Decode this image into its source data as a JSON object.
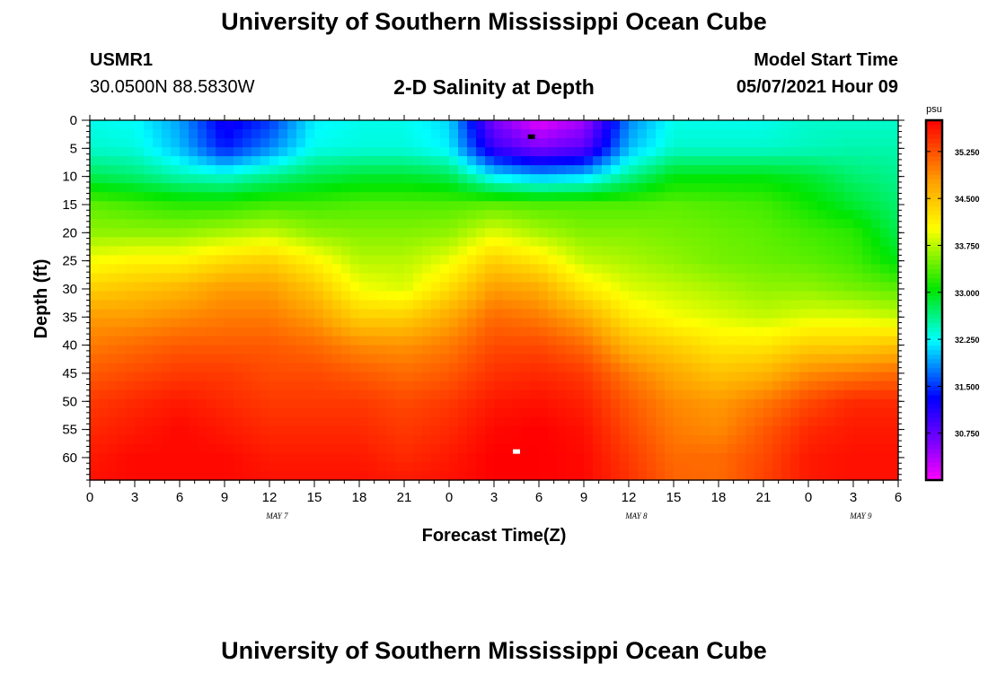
{
  "header": {
    "title": "University of Southern Mississippi Ocean Cube",
    "station": "USMR1",
    "coordinates": "30.0500N  88.5830W",
    "subtitle": "2-D Salinity at Depth",
    "model_start_label": "Model Start Time",
    "model_start_value": "05/07/2021 Hour 09"
  },
  "footer": {
    "title": "University of Southern Mississippi Ocean Cube"
  },
  "colors": {
    "frame": "#000000",
    "background": "#ffffff"
  },
  "chart_data": {
    "type": "heatmap",
    "title": "2-D Salinity at Depth",
    "xlabel": "Forecast Time(Z)",
    "ylabel": "Depth (ft)",
    "xlim": [
      0,
      54
    ],
    "ylim": [
      0,
      64
    ],
    "x_ticks": [
      {
        "x": 0,
        "label": "0"
      },
      {
        "x": 3,
        "label": "3"
      },
      {
        "x": 6,
        "label": "6"
      },
      {
        "x": 9,
        "label": "9"
      },
      {
        "x": 12,
        "label": "12"
      },
      {
        "x": 15,
        "label": "15"
      },
      {
        "x": 18,
        "label": "18"
      },
      {
        "x": 21,
        "label": "21"
      },
      {
        "x": 24,
        "label": "0"
      },
      {
        "x": 27,
        "label": "3"
      },
      {
        "x": 30,
        "label": "6"
      },
      {
        "x": 33,
        "label": "9"
      },
      {
        "x": 36,
        "label": "12"
      },
      {
        "x": 39,
        "label": "15"
      },
      {
        "x": 42,
        "label": "18"
      },
      {
        "x": 45,
        "label": "21"
      },
      {
        "x": 48,
        "label": "0"
      },
      {
        "x": 51,
        "label": "3"
      },
      {
        "x": 54,
        "label": "6"
      }
    ],
    "date_labels": [
      {
        "x": 12.5,
        "label": "MAY 7"
      },
      {
        "x": 36.5,
        "label": "MAY 8"
      },
      {
        "x": 51.5,
        "label": "MAY 9"
      }
    ],
    "y_ticks": [
      0,
      5,
      10,
      15,
      20,
      25,
      30,
      35,
      40,
      45,
      50,
      55,
      60
    ],
    "colorbar": {
      "unit": "psu",
      "min": 30.0,
      "max": 35.75,
      "tick_values": [
        30.75,
        31.5,
        32.25,
        33.0,
        33.75,
        34.5,
        35.25
      ],
      "tick_labels": [
        "30.750",
        "31.500",
        "32.250",
        "33.000",
        "33.750",
        "34.500",
        "35.250"
      ]
    },
    "markers": [
      {
        "name": "minimum-salinity-marker",
        "x": 29.5,
        "depth": 3,
        "color": "#000000"
      },
      {
        "name": "maximum-salinity-marker",
        "x": 28.5,
        "depth": 59,
        "color": "#ffffff"
      }
    ],
    "field": {
      "x": [
        0,
        3,
        6,
        9,
        12,
        15,
        18,
        21,
        24,
        27,
        30,
        33,
        36,
        39,
        42,
        45,
        48,
        51,
        54
      ],
      "depth": [
        0,
        5,
        10,
        15,
        20,
        25,
        30,
        35,
        40,
        45,
        50,
        55,
        60,
        64
      ],
      "salinity_by_depth": [
        [
          32.3,
          32.25,
          31.9,
          31.2,
          31.5,
          32.2,
          32.3,
          32.3,
          32.1,
          30.6,
          30.1,
          30.4,
          31.8,
          32.3,
          32.3,
          32.3,
          32.4,
          32.4,
          32.4
        ],
        [
          32.4,
          32.35,
          32.0,
          31.4,
          31.8,
          32.3,
          32.35,
          32.35,
          32.2,
          31.0,
          30.6,
          30.8,
          32.0,
          32.4,
          32.4,
          32.4,
          32.45,
          32.5,
          32.5
        ],
        [
          32.8,
          32.7,
          32.5,
          32.4,
          32.6,
          32.8,
          32.9,
          32.9,
          32.8,
          32.2,
          32.0,
          32.1,
          32.6,
          33.0,
          33.0,
          33.0,
          32.9,
          32.7,
          32.6
        ],
        [
          33.4,
          33.3,
          33.2,
          33.2,
          33.3,
          33.3,
          33.35,
          33.35,
          33.35,
          33.4,
          33.35,
          33.35,
          33.35,
          33.4,
          33.35,
          33.3,
          33.1,
          32.9,
          32.7
        ],
        [
          33.6,
          33.6,
          33.6,
          33.7,
          33.8,
          33.6,
          33.55,
          33.55,
          33.6,
          33.9,
          33.7,
          33.55,
          33.55,
          33.5,
          33.45,
          33.4,
          33.3,
          33.2,
          32.8
        ],
        [
          34.0,
          34.1,
          34.1,
          34.3,
          34.4,
          34.1,
          33.75,
          33.75,
          33.95,
          34.4,
          34.2,
          33.8,
          33.7,
          33.6,
          33.5,
          33.45,
          33.4,
          33.3,
          33.0
        ],
        [
          34.4,
          34.5,
          34.6,
          34.8,
          34.8,
          34.5,
          34.0,
          33.9,
          34.3,
          34.8,
          34.7,
          34.2,
          33.9,
          33.8,
          33.7,
          33.6,
          33.6,
          33.5,
          33.4
        ],
        [
          34.8,
          34.8,
          34.9,
          35.0,
          35.0,
          34.8,
          34.4,
          34.4,
          34.7,
          35.1,
          35.0,
          34.7,
          34.2,
          34.0,
          33.9,
          33.8,
          33.9,
          33.9,
          33.8
        ],
        [
          35.0,
          35.1,
          35.2,
          35.2,
          35.2,
          35.1,
          34.9,
          34.85,
          35.0,
          35.3,
          35.3,
          35.1,
          34.6,
          34.4,
          34.2,
          34.2,
          34.4,
          34.4,
          34.5
        ],
        [
          35.2,
          35.3,
          35.4,
          35.4,
          35.3,
          35.3,
          35.2,
          35.1,
          35.2,
          35.45,
          35.5,
          35.4,
          35.0,
          34.7,
          34.5,
          34.6,
          34.9,
          35.0,
          35.1
        ],
        [
          35.4,
          35.5,
          35.6,
          35.5,
          35.4,
          35.4,
          35.4,
          35.3,
          35.4,
          35.6,
          35.65,
          35.55,
          35.2,
          34.9,
          34.8,
          35.0,
          35.3,
          35.5,
          35.5
        ],
        [
          35.5,
          35.6,
          35.7,
          35.6,
          35.5,
          35.5,
          35.5,
          35.4,
          35.5,
          35.7,
          35.75,
          35.65,
          35.3,
          35.0,
          34.9,
          35.2,
          35.5,
          35.6,
          35.6
        ],
        [
          35.6,
          35.7,
          35.7,
          35.7,
          35.6,
          35.6,
          35.6,
          35.5,
          35.6,
          35.75,
          35.75,
          35.7,
          35.4,
          35.1,
          35.1,
          35.3,
          35.6,
          35.65,
          35.65
        ],
        [
          35.65,
          35.7,
          35.7,
          35.7,
          35.65,
          35.65,
          35.65,
          35.6,
          35.65,
          35.75,
          35.75,
          35.7,
          35.45,
          35.15,
          35.1,
          35.35,
          35.6,
          35.65,
          35.65
        ]
      ]
    }
  }
}
